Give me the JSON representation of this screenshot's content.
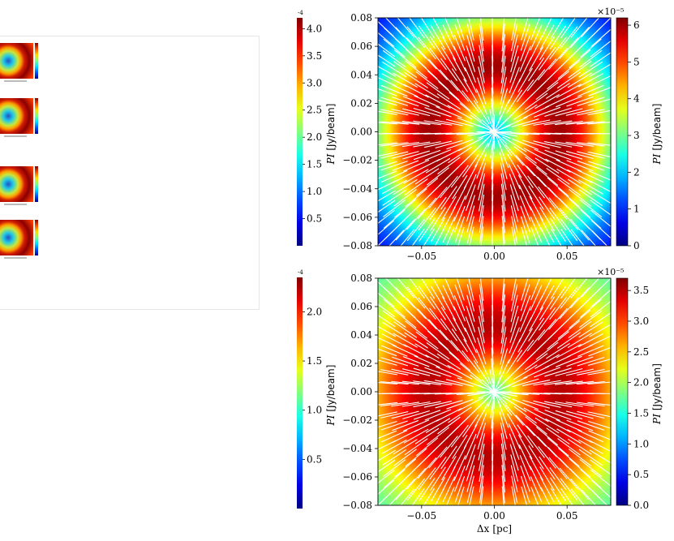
{
  "left_colorbars": [
    {
      "exponent": "-4",
      "ticks": [
        "4.0",
        "3.5",
        "3.0",
        "2.5",
        "2.0",
        "1.5",
        "1.0",
        "0.5"
      ],
      "tick_values": [
        4.0,
        3.5,
        3.0,
        2.5,
        2.0,
        1.5,
        1.0,
        0.5
      ],
      "range": [
        0,
        4.2
      ],
      "label_math": "PI",
      "label_unit": "[Jy/beam]"
    },
    {
      "exponent": "-4",
      "ticks": [
        "2.0",
        "1.5",
        "1.0",
        "0.5"
      ],
      "tick_values": [
        2.0,
        1.5,
        1.0,
        0.5
      ],
      "range": [
        0,
        2.35
      ],
      "label_math": "PI",
      "label_unit": "[Jy/beam]"
    }
  ],
  "chart_data": [
    {
      "type": "heatmap",
      "title": "",
      "xlabel": "",
      "ylabel": "",
      "xlim": [
        -0.08,
        0.08
      ],
      "ylim": [
        -0.08,
        0.08
      ],
      "x_ticks": [
        "−0.05",
        "0.00",
        "0.05"
      ],
      "x_tick_values": [
        -0.05,
        0.0,
        0.05
      ],
      "y_ticks": [
        "0.08",
        "0.06",
        "0.04",
        "0.02",
        "0.00",
        "−0.02",
        "−0.04",
        "−0.06",
        "−0.08"
      ],
      "y_tick_values": [
        0.08,
        0.06,
        0.04,
        0.02,
        0.0,
        -0.02,
        -0.04,
        -0.06,
        -0.08
      ],
      "colorbar": {
        "label_math": "PI",
        "label_unit": "[Jy/beam]",
        "offset_text": "×10⁻⁵",
        "ticks": [
          "6",
          "5",
          "4",
          "3",
          "2",
          "1",
          "0"
        ],
        "tick_values": [
          6,
          5,
          4,
          3,
          2,
          1,
          0
        ],
        "range": [
          0,
          6.2
        ]
      },
      "ring_radius_pc": 0.045,
      "ring_width_pc": 0.028,
      "peak_value": 6.0,
      "center_value": 0.0,
      "corner_value": 0.6,
      "vectors": "radial",
      "colormap": "jet"
    },
    {
      "type": "heatmap",
      "title": "",
      "xlabel_math": "Δx",
      "xlabel_unit": "[pc]",
      "ylabel": "",
      "xlim": [
        -0.08,
        0.08
      ],
      "ylim": [
        -0.08,
        0.08
      ],
      "x_ticks": [
        "−0.05",
        "0.00",
        "0.05"
      ],
      "x_tick_values": [
        -0.05,
        0.0,
        0.05
      ],
      "y_ticks": [
        "0.08",
        "0.06",
        "0.04",
        "0.02",
        "0.00",
        "−0.02",
        "−0.04",
        "−0.06",
        "−0.08"
      ],
      "y_tick_values": [
        0.08,
        0.06,
        0.04,
        0.02,
        0.0,
        -0.02,
        -0.04,
        -0.06,
        -0.08
      ],
      "colorbar": {
        "label_math": "PI",
        "label_unit": "[Jy/beam]",
        "offset_text": "×10⁻⁵",
        "ticks": [
          "3.5",
          "3.0",
          "2.5",
          "2.0",
          "1.5",
          "1.0",
          "0.5",
          "0.0"
        ],
        "tick_values": [
          3.5,
          3.0,
          2.5,
          2.0,
          1.5,
          1.0,
          0.5,
          0.0
        ],
        "range": [
          0,
          3.7
        ]
      },
      "ring_radius_pc": 0.045,
      "ring_width_pc": 0.032,
      "peak_value": 3.5,
      "center_value": 0.4,
      "corner_value": 1.5,
      "vectors": "radial",
      "colormap": "jet"
    }
  ]
}
